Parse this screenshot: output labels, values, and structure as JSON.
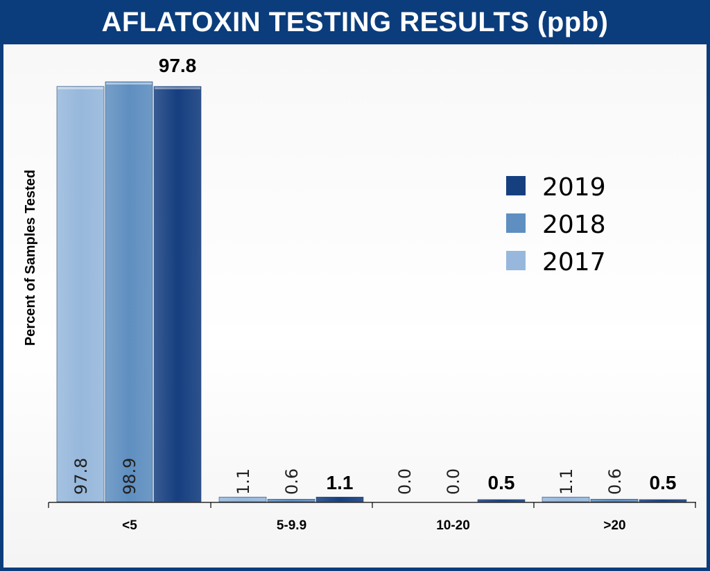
{
  "chart_data": {
    "type": "bar",
    "title": "AFLATOXIN TESTING RESULTS (ppb)",
    "ylabel": "Percent of Samples Tested",
    "xlabel": "",
    "ylim": [
      0,
      100
    ],
    "grid": false,
    "legend_position": "right",
    "categories": [
      "<5",
      "5-9.9",
      "10-20",
      ">20"
    ],
    "series": [
      {
        "name": "2017",
        "color": "#97b8dc",
        "values": [
          97.8,
          1.1,
          0.0,
          1.1
        ],
        "labels": [
          "97.8",
          "1.1",
          "0.0",
          "1.1"
        ]
      },
      {
        "name": "2018",
        "color": "#5f8fc0",
        "values": [
          98.9,
          0.6,
          0.0,
          0.6
        ],
        "labels": [
          "98.9",
          "0.6",
          "0.0",
          "0.6"
        ]
      },
      {
        "name": "2019",
        "color": "#163f80",
        "values": [
          97.8,
          1.1,
          0.5,
          0.5
        ],
        "labels": [
          "97.8",
          "1.1",
          "0.5",
          "0.5"
        ]
      }
    ],
    "legend_order": [
      "2019",
      "2018",
      "2017"
    ]
  }
}
